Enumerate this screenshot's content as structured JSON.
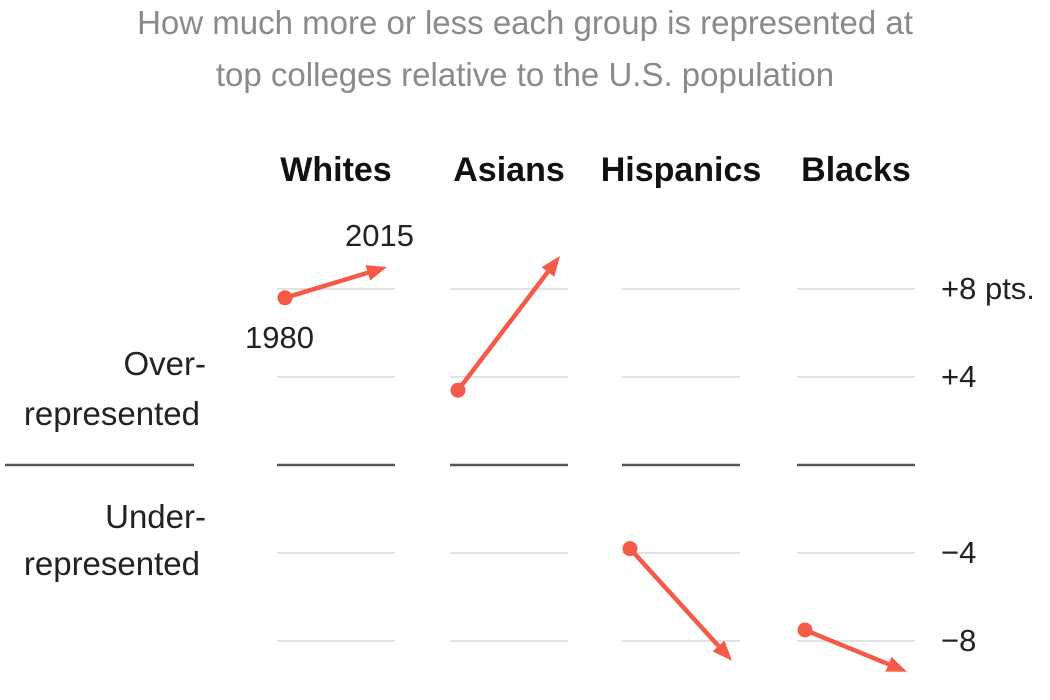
{
  "title_lines": [
    "How much more or less each group is represented at",
    "top colleges relative to the U.S. population"
  ],
  "labels": {
    "over_line1": "Over-",
    "over_line2": "represented",
    "under_line1": "Under-",
    "under_line2": "represented"
  },
  "colors": {
    "arrow": "#f45a47",
    "gridline": "#e2e2e2",
    "zero_line": "#555555",
    "title": "#8a8a8a"
  },
  "chart_data": {
    "type": "line",
    "subtype": "arrow-slope",
    "title": "How much more or less each group is represented at top colleges relative to the U.S. population",
    "x": [
      "1980",
      "2015"
    ],
    "ylim": [
      -10,
      10
    ],
    "yticks": [
      8,
      4,
      -4,
      -8
    ],
    "ytick_labels": [
      "+8 pts.",
      "+4",
      "−4",
      "−8"
    ],
    "start_label": "1980",
    "end_label": "2015",
    "series": [
      {
        "name": "Whites",
        "values": [
          7.6,
          9.0
        ]
      },
      {
        "name": "Asians",
        "values": [
          3.4,
          9.5
        ]
      },
      {
        "name": "Hispanics",
        "values": [
          -3.8,
          -8.9
        ]
      },
      {
        "name": "Blacks",
        "values": [
          -7.5,
          -9.4
        ]
      }
    ]
  }
}
